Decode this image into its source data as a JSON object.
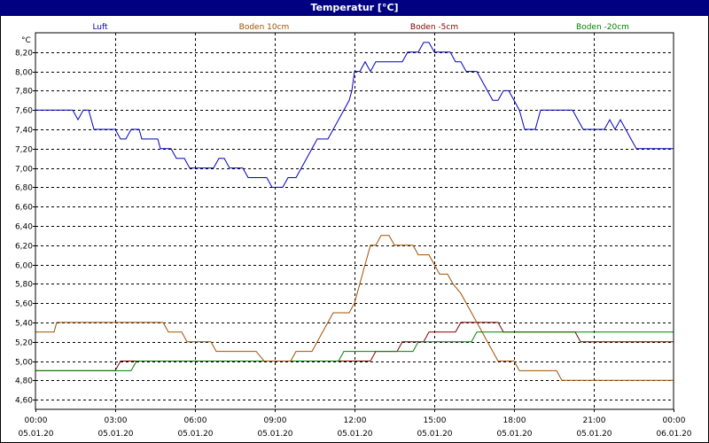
{
  "window": {
    "title": "Temperatur [°C]"
  },
  "chart_data": {
    "type": "line",
    "title": "Temperatur [°C]",
    "ylabel": "°C",
    "ylim": [
      4.5,
      8.4
    ],
    "yticks": [
      "8,20",
      "8,00",
      "7,80",
      "7,60",
      "7,40",
      "7,20",
      "7,00",
      "6,80",
      "6,60",
      "6,40",
      "6,20",
      "6,00",
      "5,80",
      "5,60",
      "5,40",
      "5,20",
      "5,00",
      "4,80",
      "4,60"
    ],
    "ytick_values": [
      8.2,
      8.0,
      7.8,
      7.6,
      7.4,
      7.2,
      7.0,
      6.8,
      6.6,
      6.4,
      6.2,
      6.0,
      5.8,
      5.6,
      5.4,
      5.2,
      5.0,
      4.8,
      4.6
    ],
    "xlim": [
      0,
      24
    ],
    "xticks": [
      {
        "time": "00:00",
        "date": "05.01.20",
        "h": 0
      },
      {
        "time": "03:00",
        "date": "05.01.20",
        "h": 3
      },
      {
        "time": "06:00",
        "date": "05.01.20",
        "h": 6
      },
      {
        "time": "09:00",
        "date": "05.01.20",
        "h": 9
      },
      {
        "time": "12:00",
        "date": "05.01.20",
        "h": 12
      },
      {
        "time": "15:00",
        "date": "05.01.20",
        "h": 15
      },
      {
        "time": "18:00",
        "date": "05.01.20",
        "h": 18
      },
      {
        "time": "21:00",
        "date": "05.01.20",
        "h": 21
      },
      {
        "time": "00:00",
        "date": "06.01.20",
        "h": 24
      }
    ],
    "grid": true,
    "legend_position": "top",
    "series": [
      {
        "name": "Luft",
        "color": "#0000c0",
        "points": [
          [
            0,
            7.6
          ],
          [
            1.4,
            7.6
          ],
          [
            1.6,
            7.5
          ],
          [
            1.8,
            7.6
          ],
          [
            2.0,
            7.6
          ],
          [
            2.2,
            7.4
          ],
          [
            3.0,
            7.4
          ],
          [
            3.2,
            7.3
          ],
          [
            3.4,
            7.3
          ],
          [
            3.6,
            7.4
          ],
          [
            3.9,
            7.4
          ],
          [
            4.0,
            7.3
          ],
          [
            4.6,
            7.3
          ],
          [
            4.7,
            7.2
          ],
          [
            5.1,
            7.2
          ],
          [
            5.3,
            7.1
          ],
          [
            5.6,
            7.1
          ],
          [
            5.8,
            7.0
          ],
          [
            6.7,
            7.0
          ],
          [
            6.9,
            7.1
          ],
          [
            7.1,
            7.1
          ],
          [
            7.3,
            7.0
          ],
          [
            7.8,
            7.0
          ],
          [
            8.0,
            6.9
          ],
          [
            8.5,
            6.9
          ],
          [
            8.7,
            6.9
          ],
          [
            8.9,
            6.8
          ],
          [
            9.3,
            6.8
          ],
          [
            9.5,
            6.9
          ],
          [
            9.8,
            6.9
          ],
          [
            10.0,
            7.0
          ],
          [
            10.2,
            7.1
          ],
          [
            10.4,
            7.2
          ],
          [
            10.6,
            7.3
          ],
          [
            11.0,
            7.3
          ],
          [
            11.2,
            7.4
          ],
          [
            11.4,
            7.5
          ],
          [
            11.6,
            7.6
          ],
          [
            11.8,
            7.7
          ],
          [
            11.9,
            7.8
          ],
          [
            12.0,
            8.0
          ],
          [
            12.2,
            8.0
          ],
          [
            12.4,
            8.1
          ],
          [
            12.6,
            8.0
          ],
          [
            12.8,
            8.1
          ],
          [
            13.8,
            8.1
          ],
          [
            14.0,
            8.2
          ],
          [
            14.4,
            8.2
          ],
          [
            14.6,
            8.3
          ],
          [
            14.8,
            8.3
          ],
          [
            15.0,
            8.2
          ],
          [
            15.6,
            8.2
          ],
          [
            15.8,
            8.1
          ],
          [
            16.0,
            8.1
          ],
          [
            16.2,
            8.0
          ],
          [
            16.6,
            8.0
          ],
          [
            16.8,
            7.9
          ],
          [
            17.0,
            7.8
          ],
          [
            17.2,
            7.7
          ],
          [
            17.4,
            7.7
          ],
          [
            17.6,
            7.8
          ],
          [
            17.8,
            7.8
          ],
          [
            18.0,
            7.7
          ],
          [
            18.2,
            7.6
          ],
          [
            18.4,
            7.4
          ],
          [
            18.8,
            7.4
          ],
          [
            19.0,
            7.6
          ],
          [
            20.2,
            7.6
          ],
          [
            20.4,
            7.5
          ],
          [
            20.6,
            7.4
          ],
          [
            21.4,
            7.4
          ],
          [
            21.6,
            7.5
          ],
          [
            21.8,
            7.4
          ],
          [
            22.0,
            7.5
          ],
          [
            22.2,
            7.4
          ],
          [
            22.4,
            7.3
          ],
          [
            22.6,
            7.2
          ],
          [
            24.5,
            7.2
          ],
          [
            24.7,
            7.1
          ],
          [
            25.0,
            7.1
          ],
          [
            25.2,
            7.0
          ]
        ]
      },
      {
        "name": "Boden 10cm",
        "color": "#a05000",
        "points": [
          [
            0,
            5.3
          ],
          [
            0.7,
            5.3
          ],
          [
            0.8,
            5.4
          ],
          [
            4.8,
            5.4
          ],
          [
            5.0,
            5.3
          ],
          [
            5.5,
            5.3
          ],
          [
            5.7,
            5.2
          ],
          [
            6.6,
            5.2
          ],
          [
            6.8,
            5.1
          ],
          [
            8.3,
            5.1
          ],
          [
            8.6,
            5.0
          ],
          [
            9.6,
            5.0
          ],
          [
            9.8,
            5.1
          ],
          [
            10.4,
            5.1
          ],
          [
            10.6,
            5.2
          ],
          [
            10.8,
            5.3
          ],
          [
            11.0,
            5.4
          ],
          [
            11.2,
            5.5
          ],
          [
            11.8,
            5.5
          ],
          [
            12.0,
            5.6
          ],
          [
            12.2,
            5.8
          ],
          [
            12.4,
            6.0
          ],
          [
            12.6,
            6.2
          ],
          [
            12.8,
            6.2
          ],
          [
            13.0,
            6.3
          ],
          [
            13.3,
            6.3
          ],
          [
            13.5,
            6.2
          ],
          [
            14.2,
            6.2
          ],
          [
            14.4,
            6.1
          ],
          [
            14.8,
            6.1
          ],
          [
            15.0,
            6.0
          ],
          [
            15.2,
            5.9
          ],
          [
            15.5,
            5.9
          ],
          [
            15.7,
            5.8
          ],
          [
            16.0,
            5.7
          ],
          [
            16.2,
            5.6
          ],
          [
            16.4,
            5.5
          ],
          [
            16.6,
            5.4
          ],
          [
            16.8,
            5.3
          ],
          [
            17.0,
            5.2
          ],
          [
            17.2,
            5.1
          ],
          [
            17.4,
            5.0
          ],
          [
            18.0,
            5.0
          ],
          [
            18.2,
            4.9
          ],
          [
            19.0,
            4.9
          ],
          [
            19.2,
            4.9
          ],
          [
            19.6,
            4.9
          ],
          [
            19.8,
            4.8
          ],
          [
            24.6,
            4.8
          ],
          [
            24.8,
            4.7
          ],
          [
            25.2,
            4.7
          ]
        ]
      },
      {
        "name": "Boden -5cm",
        "color": "#800000",
        "points": [
          [
            0,
            4.9
          ],
          [
            3.0,
            4.9
          ],
          [
            3.2,
            5.0
          ],
          [
            12.6,
            5.0
          ],
          [
            12.8,
            5.1
          ],
          [
            13.6,
            5.1
          ],
          [
            13.8,
            5.2
          ],
          [
            14.6,
            5.2
          ],
          [
            14.8,
            5.3
          ],
          [
            15.8,
            5.3
          ],
          [
            16.0,
            5.4
          ],
          [
            16.8,
            5.4
          ],
          [
            17.0,
            5.4
          ],
          [
            17.4,
            5.4
          ],
          [
            17.6,
            5.3
          ],
          [
            20.3,
            5.3
          ],
          [
            20.5,
            5.2
          ],
          [
            25.2,
            5.2
          ]
        ]
      },
      {
        "name": "Boden -20cm",
        "color": "#008000",
        "points": [
          [
            0,
            4.9
          ],
          [
            3.6,
            4.9
          ],
          [
            3.8,
            5.0
          ],
          [
            11.4,
            5.0
          ],
          [
            11.6,
            5.1
          ],
          [
            14.2,
            5.1
          ],
          [
            14.4,
            5.2
          ],
          [
            16.4,
            5.2
          ],
          [
            16.6,
            5.3
          ],
          [
            25.2,
            5.3
          ]
        ]
      }
    ]
  }
}
